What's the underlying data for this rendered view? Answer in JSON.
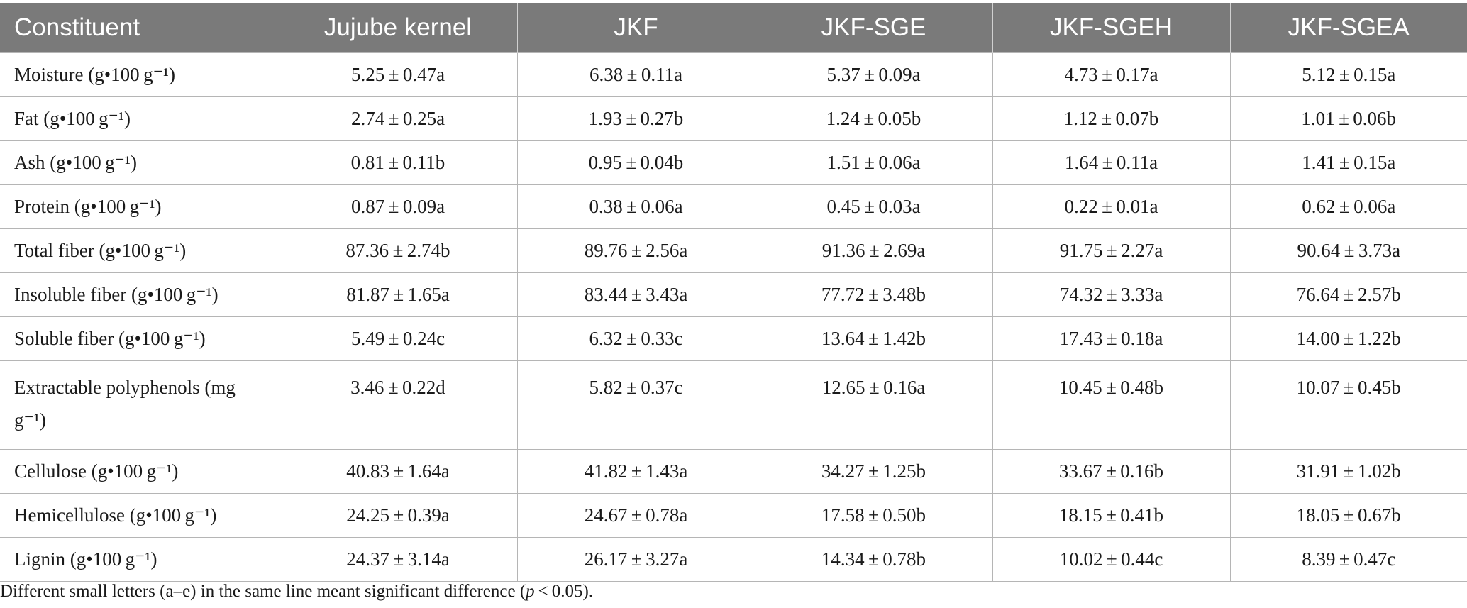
{
  "table": {
    "headers": [
      "Constituent",
      "Jujube kernel",
      "JKF",
      "JKF-SGE",
      "JKF-SGEH",
      "JKF-SGEA"
    ],
    "rows": [
      {
        "label": "Moisture (g•100 g⁻¹)",
        "values": [
          "5.25 ± 0.47a",
          "6.38 ± 0.11a",
          "5.37 ± 0.09a",
          "4.73 ± 0.17a",
          "5.12 ± 0.15a"
        ]
      },
      {
        "label": "Fat (g•100 g⁻¹)",
        "values": [
          "2.74 ± 0.25a",
          "1.93 ± 0.27b",
          "1.24 ± 0.05b",
          "1.12 ± 0.07b",
          "1.01 ± 0.06b"
        ]
      },
      {
        "label": "Ash (g•100 g⁻¹)",
        "values": [
          "0.81 ± 0.11b",
          "0.95 ± 0.04b",
          "1.51 ± 0.06a",
          "1.64 ± 0.11a",
          "1.41 ± 0.15a"
        ]
      },
      {
        "label": "Protein (g•100 g⁻¹)",
        "values": [
          "0.87 ± 0.09a",
          "0.38 ± 0.06a",
          "0.45 ± 0.03a",
          "0.22 ± 0.01a",
          "0.62 ± 0.06a"
        ]
      },
      {
        "label": "Total fiber (g•100 g⁻¹)",
        "values": [
          "87.36 ± 2.74b",
          "89.76 ± 2.56a",
          "91.36 ± 2.69a",
          "91.75 ± 2.27a",
          "90.64 ± 3.73a"
        ]
      },
      {
        "label": "Insoluble fiber (g•100 g⁻¹)",
        "values": [
          "81.87 ± 1.65a",
          "83.44 ± 3.43a",
          "77.72 ± 3.48b",
          "74.32 ± 3.33a",
          "76.64 ± 2.57b"
        ]
      },
      {
        "label": "Soluble fiber (g•100 g⁻¹)",
        "values": [
          "5.49 ± 0.24c",
          "6.32 ± 0.33c",
          "13.64 ± 1.42b",
          "17.43 ± 0.18a",
          "14.00 ± 1.22b"
        ]
      },
      {
        "label": "Extractable polyphenols (mg g⁻¹)",
        "values": [
          "3.46 ± 0.22d",
          "5.82 ± 0.37c",
          "12.65 ± 0.16a",
          "10.45 ± 0.48b",
          "10.07 ± 0.45b"
        ],
        "tall": true
      },
      {
        "label": "Cellulose (g•100 g⁻¹)",
        "values": [
          "40.83 ± 1.64a",
          "41.82 ± 1.43a",
          "34.27 ± 1.25b",
          "33.67 ± 0.16b",
          "31.91 ± 1.02b"
        ]
      },
      {
        "label": "Hemicellulose (g•100 g⁻¹)",
        "values": [
          "24.25 ± 0.39a",
          "24.67 ± 0.78a",
          "17.58 ± 0.50b",
          "18.15 ± 0.41b",
          "18.05 ± 0.67b"
        ]
      },
      {
        "label": "Lignin (g•100 g⁻¹)",
        "values": [
          "24.37 ± 3.14a",
          "26.17 ± 3.27a",
          "14.34 ± 0.78b",
          "10.02 ± 0.44c",
          "8.39 ± 0.47c"
        ]
      }
    ]
  },
  "footnote": {
    "before": "Different small letters (a–e) in the same line meant significant difference (",
    "italic": "p",
    "after": " < 0.05)."
  }
}
